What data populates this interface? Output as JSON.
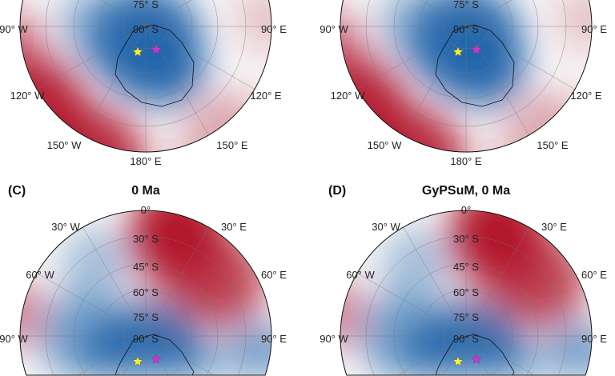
{
  "colors": {
    "red": "#b2182b",
    "blue": "#2166ac",
    "white": "#f7f7f7",
    "star_yellow": "#f5f032",
    "star_magenta": "#d62fd6"
  },
  "panels": [
    {
      "letter": "",
      "title": "",
      "view": "pole",
      "labels": [
        "75° S",
        "90° S",
        "90° W",
        "90° E",
        "120° W",
        "120° E",
        "150° W",
        "150° E",
        "180° E"
      ]
    },
    {
      "letter": "",
      "title": "",
      "view": "pole",
      "labels": [
        "75° S",
        "90° S",
        "90° W",
        "90° E",
        "120° W",
        "120° E",
        "150° W",
        "150° E",
        "180° E"
      ]
    },
    {
      "letter": "(C)",
      "title": "0 Ma",
      "view": "south",
      "labels": [
        "0°",
        "30° W",
        "30° E",
        "30° S",
        "45° S",
        "60° W",
        "60° E",
        "60° S",
        "75° S",
        "90° S",
        "90° W",
        "90° E"
      ]
    },
    {
      "letter": "(D)",
      "title": "GyPSuM, 0 Ma",
      "view": "south",
      "labels": [
        "0°",
        "30° W",
        "30° E",
        "30° S",
        "45° S",
        "60° W",
        "60° E",
        "60° S",
        "75° S",
        "90° S",
        "90° W",
        "90° E"
      ]
    }
  ]
}
